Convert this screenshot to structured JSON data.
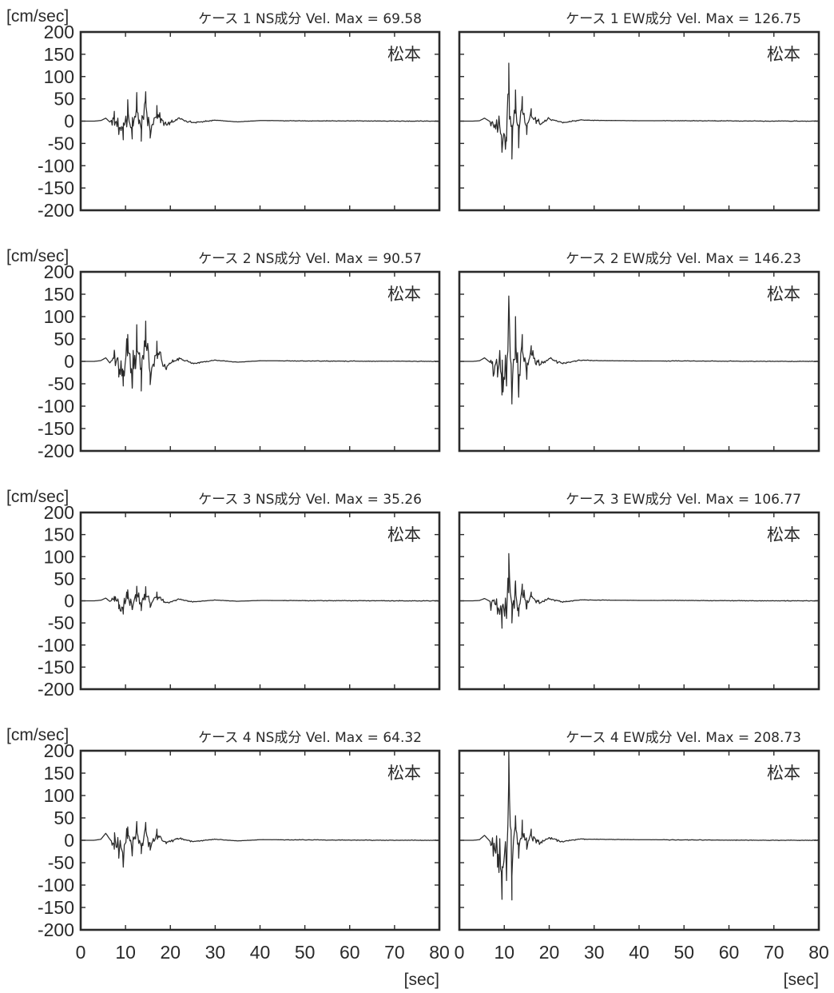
{
  "chart_data": [
    {
      "type": "line",
      "ylabel": "[cm/sec]",
      "title": "ケース 1  NS成分 Vel. Max =  69.58",
      "station": "松本",
      "xlim": [
        0,
        80
      ],
      "ylim": [
        -200,
        200
      ],
      "yticks": [
        "200",
        "150",
        "100",
        "50",
        "0",
        "-50",
        "-100",
        "-150",
        "-200"
      ],
      "xticks": [],
      "xlabel": "",
      "series": [
        {
          "x": [
            0,
            3,
            4.5,
            5.6,
            6.5,
            7.5,
            8.5,
            9.5,
            10.5,
            11.5,
            12.5,
            13.5,
            14.5,
            15.5,
            17,
            19,
            22,
            25,
            30,
            35,
            40,
            50,
            60,
            70,
            80
          ],
          "y": [
            0,
            0,
            3,
            15,
            -5,
            22,
            -30,
            -42,
            48,
            -40,
            64,
            -45,
            66,
            -38,
            35,
            -18,
            12,
            -8,
            5,
            -4,
            3,
            1,
            1,
            0,
            0
          ]
        }
      ]
    },
    {
      "type": "line",
      "ylabel": "",
      "title": "ケース 1  EW成分 Vel. Max =  126.75",
      "station": "松本",
      "xlim": [
        0,
        80
      ],
      "ylim": [
        -200,
        200
      ],
      "yticks": [],
      "xticks": [],
      "xlabel": "",
      "series": [
        {
          "x": [
            0,
            3,
            4.5,
            5.6,
            7,
            8.5,
            9.5,
            10.5,
            11,
            11.7,
            12.5,
            13.2,
            14,
            15,
            16,
            18,
            20,
            23,
            27,
            30,
            35,
            40,
            50,
            60,
            70,
            80
          ],
          "y": [
            0,
            0,
            2,
            15,
            -5,
            -25,
            -70,
            -45,
            130,
            -85,
            70,
            -60,
            55,
            -30,
            28,
            -15,
            12,
            -8,
            6,
            4,
            3,
            2,
            2,
            1,
            0,
            0
          ]
        }
      ]
    },
    {
      "type": "line",
      "ylabel": "[cm/sec]",
      "title": "ケース 2  NS成分 Vel. Max =  90.57",
      "station": "松本",
      "xlim": [
        0,
        80
      ],
      "ylim": [
        -200,
        200
      ],
      "yticks": [
        "200",
        "150",
        "100",
        "50",
        "0",
        "-50",
        "-100",
        "-150",
        "-200"
      ],
      "xticks": [],
      "xlabel": "",
      "series": [
        {
          "x": [
            0,
            3,
            4.5,
            5.6,
            6.5,
            7.5,
            8.5,
            9.5,
            10.5,
            11.5,
            12.5,
            13.5,
            14.5,
            15.5,
            17,
            19,
            22,
            25,
            30,
            35,
            40,
            50,
            60,
            70,
            80
          ],
          "y": [
            0,
            0,
            4,
            18,
            -8,
            25,
            -35,
            -55,
            60,
            -60,
            82,
            -66,
            90,
            -52,
            45,
            -25,
            15,
            -10,
            6,
            -4,
            3,
            2,
            1,
            1,
            0
          ]
        }
      ]
    },
    {
      "type": "line",
      "ylabel": "",
      "title": "ケース 2  EW成分 Vel. Max =  146.23",
      "station": "松本",
      "xlim": [
        0,
        80
      ],
      "ylim": [
        -200,
        200
      ],
      "yticks": [],
      "xticks": [],
      "xlabel": "",
      "series": [
        {
          "x": [
            0,
            3,
            4.5,
            5.6,
            7,
            8.5,
            9.5,
            10.5,
            11,
            11.7,
            12.5,
            13.2,
            14,
            15,
            16,
            18,
            20,
            23,
            27,
            30,
            35,
            40,
            50,
            60,
            70,
            80
          ],
          "y": [
            0,
            0,
            3,
            18,
            -8,
            -35,
            -75,
            -55,
            146,
            -88,
            100,
            -80,
            60,
            -40,
            35,
            -20,
            15,
            -10,
            6,
            4,
            3,
            2,
            2,
            1,
            0,
            0
          ]
        }
      ]
    },
    {
      "type": "line",
      "ylabel": "[cm/sec]",
      "title": "ケース 3  NS成分 Vel. Max =  35.26",
      "station": "松本",
      "xlim": [
        0,
        80
      ],
      "ylim": [
        -200,
        200
      ],
      "yticks": [
        "200",
        "150",
        "100",
        "50",
        "0",
        "-50",
        "-100",
        "-150",
        "-200"
      ],
      "xticks": [],
      "xlabel": "",
      "series": [
        {
          "x": [
            0,
            3,
            4.5,
            5.6,
            6.5,
            7.5,
            8.5,
            9.5,
            10.5,
            11.5,
            12.5,
            13.5,
            14.5,
            15.5,
            17,
            19,
            22,
            25,
            30,
            35,
            40,
            50,
            60,
            70,
            80
          ],
          "y": [
            0,
            0,
            3,
            14,
            -3,
            10,
            -18,
            -30,
            25,
            -20,
            33,
            -22,
            32,
            -15,
            20,
            -10,
            8,
            -5,
            4,
            -2,
            2,
            1,
            1,
            0,
            0
          ]
        }
      ]
    },
    {
      "type": "line",
      "ylabel": "",
      "title": "ケース 3  EW成分 Vel. Max =  106.77",
      "station": "松本",
      "xlim": [
        0,
        80
      ],
      "ylim": [
        -200,
        200
      ],
      "yticks": [],
      "xticks": [],
      "xlabel": "",
      "series": [
        {
          "x": [
            0,
            3,
            4.5,
            5.6,
            7,
            8.5,
            9.5,
            10.5,
            11,
            11.7,
            12.5,
            13.2,
            14,
            15,
            16,
            18,
            20,
            23,
            27,
            30,
            35,
            40,
            50,
            60,
            70,
            80
          ],
          "y": [
            0,
            0,
            2,
            12,
            -5,
            -30,
            -62,
            -40,
            107,
            -50,
            45,
            -35,
            38,
            -18,
            20,
            -10,
            10,
            -6,
            5,
            4,
            3,
            2,
            2,
            1,
            0,
            0
          ]
        }
      ]
    },
    {
      "type": "line",
      "ylabel": "[cm/sec]",
      "title": "ケース 4  NS成分 Vel. Max =  64.32",
      "station": "松本",
      "xlim": [
        0,
        80
      ],
      "ylim": [
        -200,
        200
      ],
      "yticks": [
        "200",
        "150",
        "100",
        "50",
        "0",
        "-50",
        "-100",
        "-150",
        "-200"
      ],
      "xticks": [
        "0",
        "10",
        "20",
        "30",
        "40",
        "50",
        "60",
        "70",
        "80"
      ],
      "xlabel": "[sec]",
      "series": [
        {
          "x": [
            0,
            3,
            4.5,
            5.6,
            6.5,
            7.5,
            8.5,
            9.5,
            10.5,
            11.5,
            12.5,
            13.5,
            14.5,
            15.5,
            17,
            19,
            22,
            25,
            30,
            35,
            40,
            50,
            60,
            70,
            80
          ],
          "y": [
            0,
            0,
            5,
            35,
            5,
            -20,
            -40,
            -60,
            30,
            -35,
            42,
            -30,
            40,
            -22,
            25,
            -12,
            10,
            -6,
            5,
            -3,
            3,
            2,
            1,
            0,
            0
          ]
        }
      ]
    },
    {
      "type": "line",
      "ylabel": "",
      "title": "ケース 4  EW成分 Vel. Max =  208.73",
      "station": "松本",
      "xlim": [
        0,
        80
      ],
      "ylim": [
        -200,
        200
      ],
      "yticks": [],
      "xticks": [
        "0",
        "10",
        "20",
        "30",
        "40",
        "50",
        "60",
        "70",
        "80"
      ],
      "xlabel": "[sec]",
      "series": [
        {
          "x": [
            0,
            3,
            4.5,
            5.6,
            7,
            8.5,
            9.5,
            10.5,
            11,
            11.7,
            12.5,
            13.2,
            14,
            15,
            16,
            18,
            20,
            23,
            27,
            30,
            35,
            40,
            50,
            60,
            70,
            80
          ],
          "y": [
            0,
            0,
            3,
            25,
            -10,
            -60,
            -132,
            -90,
            209,
            -80,
            55,
            -40,
            45,
            -20,
            25,
            -12,
            12,
            -6,
            6,
            5,
            4,
            3,
            2,
            1,
            0,
            0
          ]
        }
      ]
    }
  ]
}
